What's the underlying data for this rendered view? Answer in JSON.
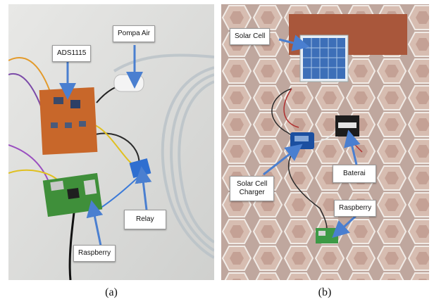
{
  "panels": [
    {
      "caption": "(a)",
      "labels": [
        "ADS1115",
        "Pompa Air",
        "Relay",
        "Raspberry"
      ]
    },
    {
      "caption": "(b)",
      "labels": [
        "Solar Cell",
        "Baterai",
        "Solar Cell\nCharger",
        "Raspberry"
      ]
    }
  ],
  "colors": {
    "arrow": "#4a7fd0",
    "floor_a": "#d9dad8",
    "pcb": "#c8672a",
    "raspberry_board": "#3f8f3a",
    "paving": "#c9a89c"
  }
}
